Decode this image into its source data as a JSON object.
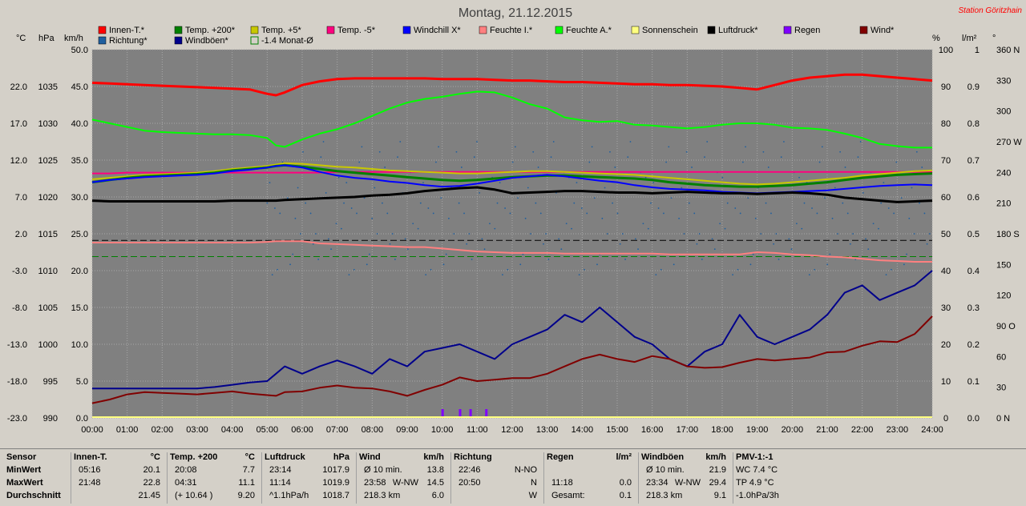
{
  "header": {
    "title": "Montag, 21.12.2015",
    "station": "Station Göritzhain"
  },
  "axes_units": {
    "c": "°C",
    "hpa": "hPa",
    "kmh": "km/h",
    "pct": "%",
    "lm2": "l/m²",
    "deg": "°"
  },
  "legend": [
    {
      "label": "Innen-T.*",
      "color": "#ff0000"
    },
    {
      "label": "Temp. +200*",
      "color": "#008000"
    },
    {
      "label": "Temp. +5*",
      "color": "#c8c800"
    },
    {
      "label": "Temp. -5*",
      "color": "#ff007f"
    },
    {
      "label": "Windchill X*",
      "color": "#0000ff"
    },
    {
      "label": "Feuchte I.*",
      "color": "#ff8080"
    },
    {
      "label": "Feuchte A.*",
      "color": "#00ff00"
    },
    {
      "label": "Sonnenschein",
      "color": "#ffff80"
    },
    {
      "label": "Luftdruck*",
      "color": "#000000"
    },
    {
      "label": "Regen",
      "color": "#8000ff"
    },
    {
      "label": "Wind*",
      "color": "#800000"
    },
    {
      "label": "Richtung*",
      "color": "#1f5f9f"
    },
    {
      "label": "Windböen*",
      "color": "#00008b"
    },
    {
      "label": "-1.4 Monat-Ø",
      "color": "#008000"
    }
  ],
  "chart_data": {
    "type": "line",
    "title": "Montag, 21.12.2015",
    "x_hours": [
      0,
      0.5,
      1,
      1.5,
      2,
      2.5,
      3,
      3.5,
      4,
      4.5,
      5,
      5.25,
      5.5,
      6,
      6.5,
      7,
      7.5,
      8,
      8.5,
      9,
      9.5,
      10,
      10.5,
      11,
      11.5,
      12,
      12.5,
      13,
      13.5,
      14,
      14.5,
      15,
      15.5,
      16,
      16.5,
      17,
      17.5,
      18,
      18.5,
      19,
      19.5,
      20,
      20.5,
      21,
      21.5,
      22,
      22.5,
      23,
      23.5,
      24
    ],
    "x_tick_labels": [
      "00:00",
      "01:00",
      "02:00",
      "03:00",
      "04:00",
      "05:00",
      "06:00",
      "07:00",
      "08:00",
      "09:00",
      "10:00",
      "11:00",
      "12:00",
      "13:00",
      "14:00",
      "15:00",
      "16:00",
      "17:00",
      "18:00",
      "19:00",
      "20:00",
      "21:00",
      "22:00",
      "23:00",
      "24:00"
    ],
    "left_axes": {
      "temp_c": {
        "ticks": [
          "22.0",
          "17.0",
          "12.0",
          "7.0",
          "2.0",
          "-3.0",
          "-8.0",
          "-13.0",
          "-18.0",
          "-23.0"
        ],
        "range": [
          -23,
          27
        ]
      },
      "pressure_hpa": {
        "ticks": [
          "1035",
          "1030",
          "1025",
          "1020",
          "1015",
          "1010",
          "1005",
          "1000",
          "995",
          "990"
        ],
        "range": [
          990,
          1040
        ]
      },
      "wind_kmh": {
        "ticks": [
          "50.0",
          "45.0",
          "40.0",
          "35.0",
          "30.0",
          "25.0",
          "20.0",
          "15.0",
          "10.0",
          "5.0",
          "0.0"
        ],
        "range": [
          0,
          50
        ]
      }
    },
    "right_axes": {
      "pct": {
        "ticks": [
          "100",
          "90",
          "80",
          "70",
          "60",
          "50",
          "40",
          "30",
          "20",
          "10",
          "0"
        ],
        "range": [
          0,
          100
        ]
      },
      "rain_lm2": {
        "ticks": [
          "1",
          "0.9",
          "0.8",
          "0.7",
          "0.6",
          "0.5",
          "0.4",
          "0.3",
          "0.2",
          "0.1",
          "0.0"
        ],
        "range": [
          0,
          1
        ]
      },
      "direction_deg": {
        "ticks": [
          "360 N",
          "330",
          "300",
          "270 W",
          "240",
          "210",
          "180 S",
          "150",
          "120",
          "90 O",
          "60",
          "30",
          "0 N"
        ],
        "range": [
          0,
          360
        ]
      }
    },
    "series": [
      {
        "name": "Innen-T.*",
        "color": "#ff0000",
        "width": 3,
        "scale": "wind",
        "values": [
          45.5,
          45.4,
          45.3,
          45.2,
          45.1,
          45.0,
          44.9,
          44.8,
          44.7,
          44.6,
          44.0,
          43.8,
          44.2,
          45.2,
          45.7,
          46.0,
          46.1,
          46.1,
          46.1,
          46.1,
          46.1,
          46.0,
          46.0,
          46.0,
          45.9,
          45.8,
          45.8,
          45.7,
          45.6,
          45.6,
          45.5,
          45.4,
          45.3,
          45.3,
          45.2,
          45.2,
          45.1,
          45.0,
          44.8,
          44.6,
          45.2,
          45.8,
          46.2,
          46.4,
          46.6,
          46.6,
          46.4,
          46.2,
          46.0,
          45.8
        ]
      },
      {
        "name": "Feuchte A.*",
        "color": "#00ff00",
        "width": 2,
        "scale": "wind",
        "values": [
          40.5,
          40.0,
          39.5,
          39.0,
          38.8,
          38.7,
          38.6,
          38.5,
          38.5,
          38.4,
          38.0,
          37.0,
          36.8,
          37.8,
          38.6,
          39.2,
          40.0,
          41.0,
          42.0,
          42.8,
          43.3,
          43.6,
          44.0,
          44.3,
          44.2,
          43.5,
          42.6,
          42.0,
          40.8,
          40.4,
          40.2,
          40.3,
          39.8,
          39.7,
          39.5,
          39.3,
          39.5,
          39.8,
          40.0,
          40.0,
          39.8,
          39.4,
          39.3,
          39.1,
          38.6,
          38.0,
          37.2,
          36.9,
          36.7,
          36.7
        ]
      },
      {
        "name": "Temp. -5*",
        "color": "#ff007f",
        "width": 2,
        "scale": "wind",
        "values": [
          33.2,
          33.2,
          33.3,
          33.3,
          33.3,
          33.3,
          33.3,
          33.3,
          33.3,
          33.3,
          33.3,
          33.3,
          33.3,
          33.3,
          33.3,
          33.4,
          33.4,
          33.4,
          33.4,
          33.4,
          33.4,
          33.4,
          33.4,
          33.4,
          33.4,
          33.4,
          33.4,
          33.4,
          33.4,
          33.4,
          33.4,
          33.4,
          33.4,
          33.4,
          33.4,
          33.4,
          33.4,
          33.4,
          33.4,
          33.4,
          33.4,
          33.4,
          33.4,
          33.4,
          33.4,
          33.4,
          33.4,
          33.4,
          33.4,
          33.4
        ]
      },
      {
        "name": "Temp. +5*",
        "color": "#c8c800",
        "width": 2,
        "scale": "wind",
        "values": [
          32.4,
          32.6,
          32.8,
          33.0,
          33.1,
          33.2,
          33.3,
          33.5,
          33.8,
          34.0,
          34.2,
          34.4,
          34.6,
          34.5,
          34.3,
          34.1,
          34.0,
          33.8,
          33.6,
          33.5,
          33.4,
          33.3,
          33.2,
          33.2,
          33.3,
          33.4,
          33.5,
          33.5,
          33.4,
          33.3,
          33.2,
          33.1,
          33.0,
          32.8,
          32.6,
          32.4,
          32.2,
          32.0,
          31.8,
          31.7,
          31.8,
          32.0,
          32.2,
          32.4,
          32.6,
          32.9,
          33.1,
          33.3,
          33.5,
          33.6
        ]
      },
      {
        "name": "Temp. +200*",
        "color": "#008000",
        "width": 3,
        "scale": "wind",
        "values": [
          32.0,
          32.3,
          32.6,
          32.8,
          32.9,
          33.0,
          33.1,
          33.3,
          33.6,
          33.8,
          34.0,
          34.2,
          34.3,
          34.1,
          33.8,
          33.5,
          33.3,
          33.1,
          32.9,
          32.7,
          32.5,
          32.3,
          32.2,
          32.3,
          32.5,
          32.7,
          32.8,
          32.9,
          32.9,
          32.8,
          32.7,
          32.6,
          32.5,
          32.3,
          32.0,
          31.8,
          31.6,
          31.5,
          31.4,
          31.4,
          31.5,
          31.6,
          31.8,
          32.0,
          32.3,
          32.6,
          32.8,
          33.0,
          33.1,
          33.2
        ]
      },
      {
        "name": "Windchill X*",
        "color": "#0000ff",
        "width": 2,
        "scale": "wind",
        "values": [
          32.0,
          32.3,
          32.5,
          32.7,
          32.8,
          32.9,
          33.0,
          33.2,
          33.5,
          33.7,
          34.0,
          34.2,
          34.3,
          34.0,
          33.4,
          32.9,
          32.6,
          32.4,
          32.1,
          31.9,
          31.6,
          31.4,
          31.5,
          31.8,
          32.2,
          32.6,
          32.8,
          33.0,
          32.8,
          32.5,
          32.2,
          32.0,
          31.6,
          31.3,
          31.1,
          31.0,
          30.9,
          30.7,
          30.6,
          30.5,
          30.6,
          30.7,
          30.8,
          30.9,
          31.1,
          31.3,
          31.5,
          31.6,
          31.7,
          31.6
        ]
      },
      {
        "name": "Luftdruck*",
        "color": "#000000",
        "width": 3,
        "scale": "wind",
        "values": [
          29.5,
          29.4,
          29.4,
          29.4,
          29.4,
          29.4,
          29.4,
          29.4,
          29.5,
          29.5,
          29.5,
          29.5,
          29.6,
          29.7,
          29.8,
          29.9,
          30.0,
          30.2,
          30.3,
          30.5,
          30.8,
          31.0,
          31.2,
          31.3,
          31.0,
          30.5,
          30.6,
          30.7,
          30.8,
          30.8,
          30.7,
          30.6,
          30.6,
          30.5,
          30.6,
          30.7,
          30.6,
          30.5,
          30.5,
          30.4,
          30.5,
          30.6,
          30.5,
          30.3,
          29.9,
          29.7,
          29.5,
          29.3,
          29.4,
          29.5
        ]
      },
      {
        "name": "Feuchte I.*",
        "color": "#ff8080",
        "width": 2,
        "scale": "wind",
        "values": [
          23.8,
          23.8,
          23.8,
          23.8,
          23.8,
          23.8,
          23.8,
          23.8,
          23.8,
          23.8,
          23.9,
          24.0,
          24.0,
          24.0,
          23.7,
          23.6,
          23.5,
          23.4,
          23.3,
          23.2,
          23.2,
          23.0,
          22.8,
          22.6,
          22.5,
          22.4,
          22.4,
          22.4,
          22.3,
          22.3,
          22.3,
          22.3,
          22.3,
          22.3,
          22.2,
          22.2,
          22.2,
          22.2,
          22.2,
          22.5,
          22.4,
          22.2,
          22.1,
          21.9,
          21.8,
          21.6,
          21.4,
          21.3,
          21.2,
          21.2
        ]
      },
      {
        "name": "Windböen*",
        "color": "#00008b",
        "width": 2,
        "scale": "wind",
        "values": [
          4.0,
          4.0,
          4.0,
          4.0,
          4.0,
          4.0,
          4.0,
          4.2,
          4.5,
          4.8,
          5.0,
          6.0,
          7.0,
          6.0,
          7.0,
          7.8,
          7.0,
          6.0,
          8.0,
          7.0,
          9.0,
          9.5,
          10.0,
          9.0,
          8.0,
          10.0,
          11.0,
          12.0,
          14.0,
          13.0,
          15.0,
          13.0,
          11.0,
          10.0,
          8.0,
          7.0,
          9.0,
          10.0,
          14.0,
          11.0,
          10.0,
          11.0,
          12.0,
          14.0,
          17.0,
          18.0,
          16.0,
          17.0,
          18.0,
          20.0
        ]
      },
      {
        "name": "Wind*",
        "color": "#800000",
        "width": 2,
        "scale": "wind",
        "values": [
          2.0,
          2.5,
          3.2,
          3.5,
          3.4,
          3.3,
          3.2,
          3.4,
          3.6,
          3.3,
          3.1,
          3.0,
          3.5,
          3.6,
          4.1,
          4.4,
          4.1,
          4.0,
          3.6,
          3.0,
          3.8,
          4.5,
          5.5,
          5.0,
          5.2,
          5.4,
          5.4,
          6.0,
          7.0,
          8.0,
          8.6,
          8.0,
          7.6,
          8.4,
          8.0,
          7.0,
          6.8,
          6.9,
          7.5,
          8.0,
          7.8,
          8.0,
          8.2,
          8.9,
          9.0,
          9.8,
          10.4,
          10.3,
          11.4,
          13.8
        ]
      }
    ],
    "reference_lines": [
      {
        "name": "black-dashed-line",
        "value": 24.1,
        "scale": "wind",
        "color": "#000000"
      },
      {
        "name": "monthly-average-line",
        "value": 21.9,
        "scale": "wind",
        "color": "#008000"
      }
    ],
    "rain_marks_hours": [
      10.0,
      10.5,
      10.8,
      11.25
    ],
    "direction_samples_deg": [
      210,
      180,
      240,
      150,
      270,
      200,
      170,
      230,
      260,
      190,
      160,
      220,
      250,
      180,
      140,
      210,
      235,
      195,
      175,
      265,
      155,
      205,
      245,
      185,
      225,
      165,
      215,
      255,
      145,
      200
    ]
  },
  "stats": {
    "labels": {
      "sensor": "Sensor",
      "min": "MinWert",
      "max": "MaxWert",
      "avg": "Durchschnitt"
    },
    "columns": [
      {
        "head": "Innen-T.",
        "unit": "°C",
        "rows": [
          [
            "05:16",
            "",
            "20.1"
          ],
          [
            "21:48",
            "",
            "22.8"
          ],
          [
            "",
            "",
            "21.45"
          ]
        ]
      },
      {
        "head": "Temp. +200",
        "unit": "°C",
        "rows": [
          [
            "20:08",
            "",
            "7.7"
          ],
          [
            "04:31",
            "",
            "11.1"
          ],
          [
            "(+ 10.64 )",
            "",
            "9.20"
          ]
        ]
      },
      {
        "head": "Luftdruck",
        "unit": "hPa",
        "rows": [
          [
            "23:14",
            "",
            "1017.9"
          ],
          [
            "11:14",
            "",
            "1019.9"
          ],
          [
            "^1.1hPa/h",
            "",
            "1018.7"
          ]
        ]
      },
      {
        "head": "Wind",
        "unit": "km/h",
        "rows": [
          [
            "Ø 10 min.",
            "",
            "13.8"
          ],
          [
            "23:58",
            "W-NW",
            "14.5"
          ],
          [
            "218.3 km",
            "",
            "6.0"
          ]
        ]
      },
      {
        "head": "Richtung",
        "unit": "",
        "rows": [
          [
            "22:46",
            "",
            "N-NO"
          ],
          [
            "20:50",
            "",
            "N"
          ],
          [
            "",
            "",
            "W"
          ]
        ]
      },
      {
        "head": "Regen",
        "unit": "l/m²",
        "rows": [
          [
            "",
            "",
            ""
          ],
          [
            "11:18",
            "",
            "0.0"
          ],
          [
            "Gesamt:",
            "",
            "0.1"
          ]
        ]
      },
      {
        "head": "Windböen",
        "unit": "km/h",
        "rows": [
          [
            "Ø 10 min.",
            "",
            "21.9"
          ],
          [
            "23:34",
            "W-NW",
            "29.4"
          ],
          [
            "218.3 km",
            "",
            "9.1"
          ]
        ]
      },
      {
        "head": "PMV-1:-1",
        "unit": "",
        "rows": [
          [
            "WC 7.4 °C",
            "",
            ""
          ],
          [
            "TP 4.9 °C",
            "",
            ""
          ],
          [
            "-1.0hPa/3h",
            "",
            ""
          ]
        ]
      }
    ]
  }
}
